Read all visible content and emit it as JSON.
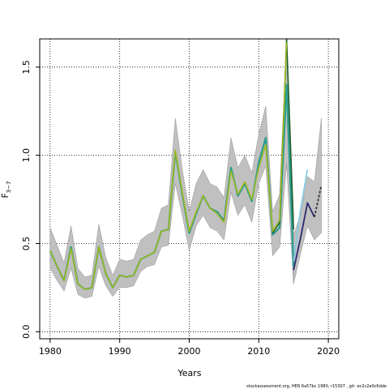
{
  "chart_data": {
    "type": "line",
    "xlabel": "Years",
    "ylabel": "F",
    "ylabel_sub": "3−7",
    "xlim": [
      1978.5,
      2021.5
    ],
    "ylim": [
      -0.04,
      1.66
    ],
    "xticks": [
      1980,
      1990,
      2000,
      2010,
      2020
    ],
    "yticks": [
      0.0,
      0.5,
      1.0,
      1.5
    ],
    "xtick_labels": [
      "1980",
      "1990",
      "2000",
      "2010",
      "2020"
    ],
    "ytick_labels": [
      "0.0",
      "0.5",
      "1.0",
      "1.5"
    ],
    "grid": true,
    "grid_style": "dotted",
    "footer": "stockassessment.org, HER 6a57bc 1980, r15307 , git: ec2c2a0c6dde",
    "band": {
      "color": "#c0c0c0",
      "x": [
        1980,
        1981,
        1982,
        1983,
        1984,
        1985,
        1986,
        1987,
        1988,
        1989,
        1990,
        1991,
        1992,
        1993,
        1994,
        1995,
        1996,
        1997,
        1998,
        1999,
        2000,
        2001,
        2002,
        2003,
        2004,
        2005,
        2006,
        2007,
        2008,
        2009,
        2010,
        2011,
        2012,
        2013,
        2014,
        2015
      ],
      "upper": [
        0.59,
        0.49,
        0.39,
        0.6,
        0.36,
        0.31,
        0.32,
        0.61,
        0.42,
        0.32,
        0.41,
        0.4,
        0.41,
        0.52,
        0.55,
        0.57,
        0.7,
        0.72,
        1.21,
        0.92,
        0.68,
        0.84,
        0.92,
        0.84,
        0.82,
        0.76,
        1.1,
        0.93,
        1.0,
        0.9,
        1.12,
        1.28,
        0.68,
        0.78,
        1.65,
        0.66
      ],
      "lower": [
        0.36,
        0.29,
        0.23,
        0.36,
        0.21,
        0.19,
        0.2,
        0.37,
        0.26,
        0.2,
        0.25,
        0.25,
        0.26,
        0.34,
        0.37,
        0.38,
        0.48,
        0.49,
        0.84,
        0.66,
        0.46,
        0.6,
        0.66,
        0.59,
        0.57,
        0.52,
        0.79,
        0.66,
        0.72,
        0.62,
        0.84,
        0.94,
        0.43,
        0.48,
        0.95,
        0.27
      ]
    },
    "forecast_band": {
      "color": "#c0c0c0",
      "x": [
        2015,
        2016,
        2017,
        2018,
        2019
      ],
      "upper": [
        0.55,
        0.66,
        0.88,
        0.85,
        1.21
      ],
      "lower": [
        0.27,
        0.44,
        0.6,
        0.52,
        0.56
      ]
    },
    "series": [
      {
        "color": "#2a9d8f",
        "width": 2.2,
        "x": [
          1980,
          1981,
          1982,
          1983,
          1984,
          1985,
          1986,
          1987,
          1988,
          1989,
          1990,
          1991,
          1992,
          1993,
          1994,
          1995,
          1996,
          1997,
          1998,
          1999,
          2000,
          2001,
          2002,
          2003,
          2004,
          2005,
          2006,
          2007,
          2008,
          2009,
          2010,
          2011,
          2012,
          2013,
          2014,
          2015
        ],
        "values": [
          0.46,
          0.37,
          0.29,
          0.48,
          0.27,
          0.24,
          0.25,
          0.48,
          0.33,
          0.25,
          0.32,
          0.31,
          0.32,
          0.41,
          0.43,
          0.45,
          0.57,
          0.58,
          1.02,
          0.78,
          0.56,
          0.67,
          0.77,
          0.7,
          0.68,
          0.63,
          0.93,
          0.77,
          0.84,
          0.74,
          0.96,
          1.1,
          0.55,
          0.59,
          1.4,
          0.37
        ]
      },
      {
        "color": "#1a5c28",
        "width": 1.6,
        "x": [
          2012,
          2013,
          2014,
          2015
        ],
        "values": [
          0.56,
          0.62,
          1.66,
          0.58
        ]
      },
      {
        "color": "#9fb81e",
        "width": 1.6,
        "x": [
          1980,
          1981,
          1982,
          1983,
          1984,
          1985,
          1986,
          1987,
          1988,
          1989,
          1990,
          1991,
          1992,
          1993,
          1994,
          1995,
          1996,
          1997,
          1998,
          1999,
          2000,
          2001,
          2002,
          2003,
          2004,
          2005,
          2006,
          2007,
          2008,
          2009,
          2010,
          2011,
          2012,
          2013,
          2014
        ],
        "values": [
          0.46,
          0.37,
          0.29,
          0.47,
          0.27,
          0.24,
          0.25,
          0.48,
          0.33,
          0.25,
          0.32,
          0.31,
          0.32,
          0.41,
          0.43,
          0.45,
          0.57,
          0.58,
          1.03,
          0.79,
          0.57,
          0.68,
          0.77,
          0.7,
          0.67,
          0.62,
          0.91,
          0.78,
          0.85,
          0.75,
          0.93,
          1.06,
          0.57,
          0.63,
          1.64
        ]
      },
      {
        "color": "#7ec8e3",
        "width": 1.6,
        "x": [
          2015,
          2016,
          2017
        ],
        "values": [
          0.4,
          0.69,
          0.92
        ]
      },
      {
        "color": "#2b2a6e",
        "width": 1.8,
        "x": [
          2015,
          2016,
          2017,
          2018
        ],
        "values": [
          0.35,
          0.53,
          0.73,
          0.65
        ]
      },
      {
        "color": "#333333",
        "width": 1.8,
        "dash": "3,2",
        "x": [
          2018,
          2019
        ],
        "values": [
          0.65,
          0.83
        ]
      }
    ]
  }
}
